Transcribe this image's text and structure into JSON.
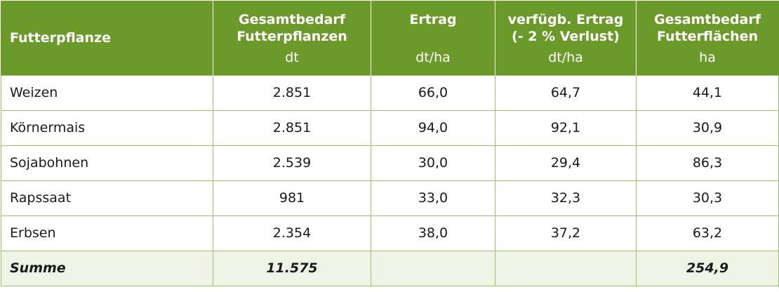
{
  "header": {
    "col0": "Futterpflanze",
    "col1_title_line1": "Gesamtbedarf",
    "col1_title_line2": "Futterpflanzen",
    "col1_unit": "dt",
    "col2_title": "Ertrag",
    "col2_unit": "dt/ha",
    "col3_title_line1": "verfügb. Ertrag",
    "col3_title_line2": "(- 2 % Verlust)",
    "col3_unit": "dt/ha",
    "col4_title_line1": "Gesamtbedarf",
    "col4_title_line2": "Futterflächen",
    "col4_unit": "ha"
  },
  "rows": [
    {
      "name": "Weizen",
      "bedarf": "2.851",
      "ertrag": "66,0",
      "verfuegbar": "64,7",
      "flaeche": "44,1"
    },
    {
      "name": "Körnermais",
      "bedarf": "2.851",
      "ertrag": "94,0",
      "verfuegbar": "92,1",
      "flaeche": "30,9"
    },
    {
      "name": "Sojabohnen",
      "bedarf": "2.539",
      "ertrag": "30,0",
      "verfuegbar": "29,4",
      "flaeche": "86,3"
    },
    {
      "name": "Rapssaat",
      "bedarf": "981",
      "ertrag": "33,0",
      "verfuegbar": "32,3",
      "flaeche": "30,3"
    },
    {
      "name": "Erbsen",
      "bedarf": "2.354",
      "ertrag": "38,0",
      "verfuegbar": "37,2",
      "flaeche": "63,2"
    }
  ],
  "summary": {
    "name": "Summe",
    "bedarf": "11.575",
    "ertrag": "",
    "verfuegbar": "",
    "flaeche": "254,9"
  },
  "colors": {
    "header_bg": "#6b9a2a",
    "border": "#9cc06a",
    "summary_bg": "#eef3e6"
  }
}
